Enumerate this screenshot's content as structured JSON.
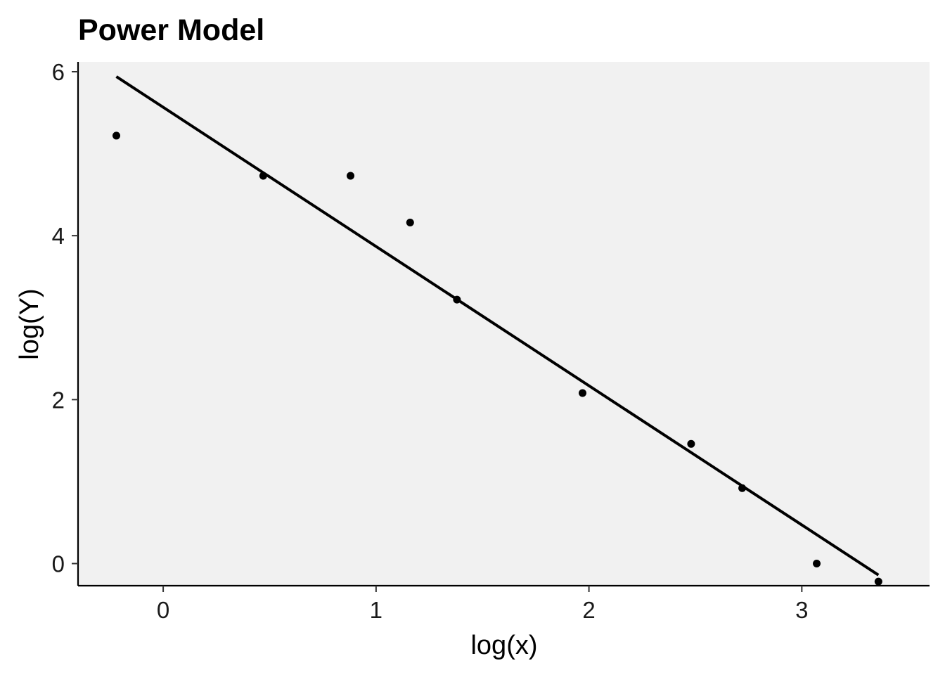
{
  "chart_data": {
    "type": "scatter",
    "title": "Power Model",
    "xlabel": "log(x)",
    "ylabel": "log(Y)",
    "xlim": [
      -0.4,
      3.6
    ],
    "ylim": [
      -0.27,
      6.12
    ],
    "xticks": [
      0,
      1,
      2,
      3
    ],
    "yticks": [
      0,
      2,
      4,
      6
    ],
    "xtick_labels": [
      "0",
      "1",
      "2",
      "3"
    ],
    "ytick_labels": [
      "0",
      "2",
      "4",
      "6"
    ],
    "grid": false,
    "panel_background": "#f1f1f1",
    "point_color": "#000000",
    "line_color": "#000000",
    "points": [
      {
        "x": -0.22,
        "y": 5.22
      },
      {
        "x": 0.47,
        "y": 4.73
      },
      {
        "x": 0.88,
        "y": 4.73
      },
      {
        "x": 1.16,
        "y": 4.16
      },
      {
        "x": 1.38,
        "y": 3.22
      },
      {
        "x": 1.97,
        "y": 2.08
      },
      {
        "x": 2.48,
        "y": 1.46
      },
      {
        "x": 2.72,
        "y": 0.92
      },
      {
        "x": 3.07,
        "y": 0.0
      },
      {
        "x": 3.36,
        "y": -0.22
      }
    ],
    "fit_line": {
      "x": [
        -0.22,
        3.36
      ],
      "y": [
        5.94,
        -0.14
      ]
    }
  }
}
